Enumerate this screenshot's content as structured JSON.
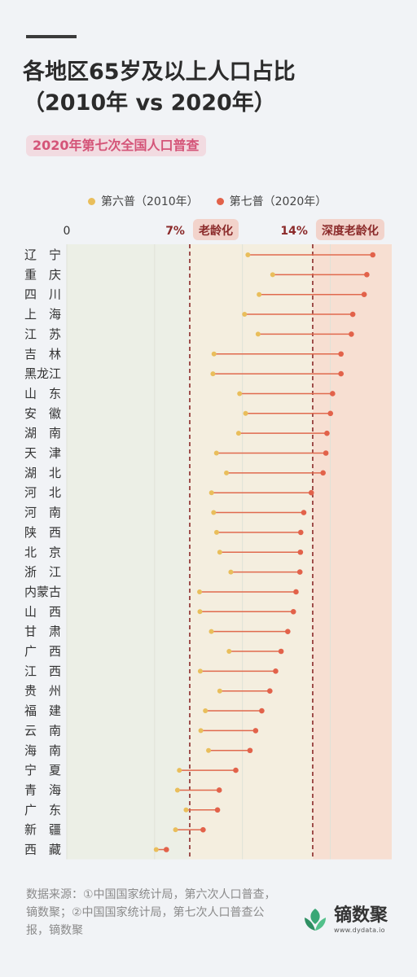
{
  "title_lines": [
    "各地区65岁及以上人口占比",
    "（2010年 vs 2020年）"
  ],
  "subtitle": "2020年第七次全国人口普查",
  "legend": {
    "items": [
      {
        "label": "第六普（2010年）",
        "color": "#e9be5b"
      },
      {
        "label": "第七普（2020年）",
        "color": "#e2624a"
      }
    ]
  },
  "source": "数据来源：①中国国家统计局，第六次人口普查，镝数聚；②中国国家统计局，第七次人口普查公报，镝数聚",
  "logo": {
    "name": "镝数聚",
    "url": "www.dydata.io"
  },
  "colors": {
    "bg_young": "#ecefe6",
    "bg_aging": "#f4eedf",
    "bg_deep": "#f7dfd2",
    "threshold_line": "#8b2a2a",
    "threshold_tag_bg": "#f2d3cb",
    "threshold_tag_text": "#8b2a2a",
    "line": "#e06a4e"
  },
  "chart_data": {
    "type": "dumbbell",
    "xlim": [
      0,
      18.5
    ],
    "thresholds": [
      {
        "value": 7,
        "label": "7%",
        "tag": "老龄化"
      },
      {
        "value": 14,
        "label": "14%",
        "tag": "深度老龄化"
      }
    ],
    "axis_zero_label": "0",
    "series": [
      {
        "name": "第六普（2010年）",
        "key": "y2010"
      },
      {
        "name": "第七普（2020年）",
        "key": "y2020"
      }
    ],
    "regions": [
      {
        "name": "辽　宁",
        "y2010": 10.31,
        "y2020": 17.42
      },
      {
        "name": "重　庆",
        "y2010": 11.72,
        "y2020": 17.08
      },
      {
        "name": "四　川",
        "y2010": 10.95,
        "y2020": 16.93
      },
      {
        "name": "上　海",
        "y2010": 10.12,
        "y2020": 16.28
      },
      {
        "name": "江　苏",
        "y2010": 10.89,
        "y2020": 16.2
      },
      {
        "name": "吉　林",
        "y2010": 8.38,
        "y2020": 15.61
      },
      {
        "name": "黑龙江",
        "y2010": 8.32,
        "y2020": 15.61
      },
      {
        "name": "山　东",
        "y2010": 9.84,
        "y2020": 15.13
      },
      {
        "name": "安　徽",
        "y2010": 10.18,
        "y2020": 15.01
      },
      {
        "name": "湖　南",
        "y2010": 9.78,
        "y2020": 14.81
      },
      {
        "name": "天　津",
        "y2010": 8.52,
        "y2020": 14.75
      },
      {
        "name": "湖　北",
        "y2010": 9.09,
        "y2020": 14.59
      },
      {
        "name": "河　北",
        "y2010": 8.24,
        "y2020": 13.92
      },
      {
        "name": "河　南",
        "y2010": 8.36,
        "y2020": 13.49
      },
      {
        "name": "陕　西",
        "y2010": 8.53,
        "y2020": 13.32
      },
      {
        "name": "北　京",
        "y2010": 8.71,
        "y2020": 13.3
      },
      {
        "name": "浙　江",
        "y2010": 9.34,
        "y2020": 13.27
      },
      {
        "name": "内蒙古",
        "y2010": 7.56,
        "y2020": 13.05
      },
      {
        "name": "山　西",
        "y2010": 7.58,
        "y2020": 12.9
      },
      {
        "name": "甘　肃",
        "y2010": 8.23,
        "y2020": 12.58
      },
      {
        "name": "广　西",
        "y2010": 9.24,
        "y2020": 12.2
      },
      {
        "name": "江　西",
        "y2010": 7.6,
        "y2020": 11.89
      },
      {
        "name": "贵　州",
        "y2010": 8.71,
        "y2020": 11.56
      },
      {
        "name": "福　建",
        "y2010": 7.89,
        "y2020": 11.1
      },
      {
        "name": "云　南",
        "y2010": 7.63,
        "y2020": 10.75
      },
      {
        "name": "海　南",
        "y2010": 8.07,
        "y2020": 10.43
      },
      {
        "name": "宁　夏",
        "y2010": 6.41,
        "y2020": 9.62
      },
      {
        "name": "青　海",
        "y2010": 6.3,
        "y2020": 8.68
      },
      {
        "name": "广　东",
        "y2010": 6.79,
        "y2020": 8.58
      },
      {
        "name": "新　疆",
        "y2010": 6.19,
        "y2020": 7.76
      },
      {
        "name": "西　藏",
        "y2010": 5.09,
        "y2020": 5.67
      }
    ]
  }
}
